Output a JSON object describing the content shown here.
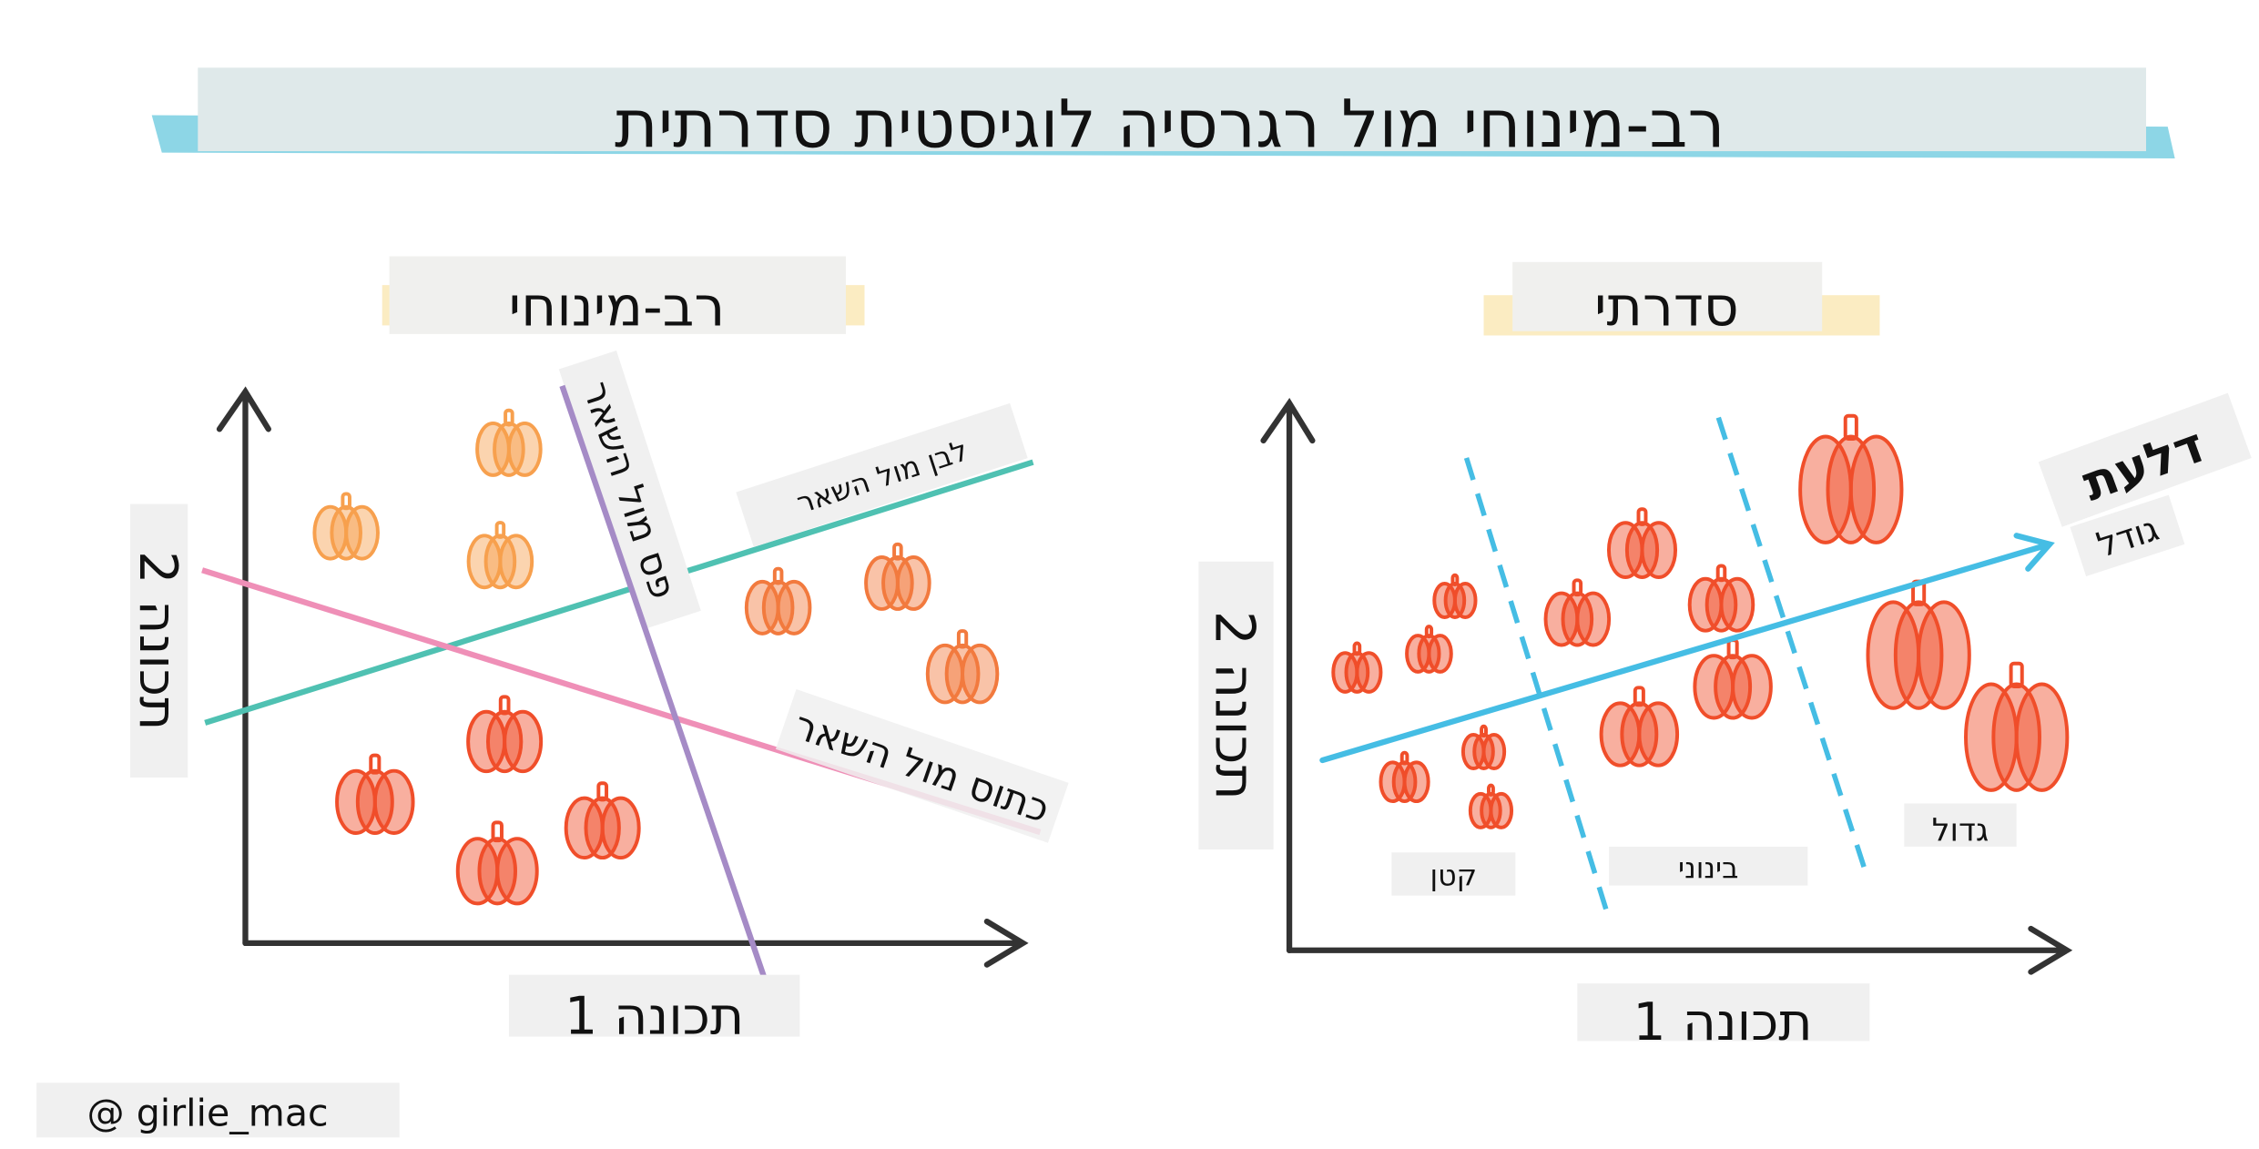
{
  "title": "תיתרדס תיטסיגול היסרגר לומ יחונימ-בר",
  "left_panel": {
    "heading": "יחונימ-בר",
    "x_axis_label": "1 הנוכת",
    "y_axis_label": "2 הנוכת",
    "line_labels": {
      "purple": "ראשה לומ ספ",
      "teal": "ראשה לומ ןבל",
      "pink": "ראשה לומ סותכ"
    }
  },
  "right_panel": {
    "heading": "יתרדס",
    "x_axis_label": "1 הנוכת",
    "y_axis_label": "2 הנוכת",
    "arrow_label_line1": "תעלד",
    "arrow_label_line2": "לדוג",
    "category_labels": [
      "ןטק",
      "ינוניב",
      "לודג"
    ]
  },
  "credit": "@ girlie_mac",
  "colors": {
    "title_band": "#dfe9ea",
    "title_brush": "#5cc4dc",
    "heading_brush": "#f8df9a",
    "label_box": "#f0f0f0",
    "teal_line": "#4fc1b2",
    "pink_line": "#ef8fb7",
    "purple_line": "#a58bc6",
    "blue_arrow": "#45bde4",
    "pumpkin_light": "#f7a04e",
    "pumpkin_orange": "#f27a3e",
    "pumpkin_red": "#f04e2a",
    "axis": "#333333"
  }
}
